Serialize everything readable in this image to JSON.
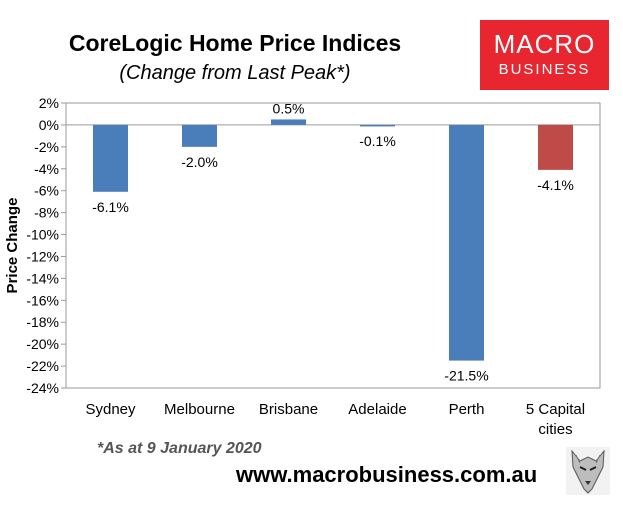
{
  "header": {
    "title": "CoreLogic Home Price Indices",
    "subtitle": "(Change from Last Peak*)"
  },
  "logo": {
    "line1": "MACRO",
    "line2": "BUSINESS"
  },
  "footer": {
    "note": "*As at 9 January 2020",
    "website": "www.macrobusiness.com.au"
  },
  "chart_data": {
    "type": "bar",
    "title": "CoreLogic Home Price Indices",
    "subtitle": "(Change from Last Peak*)",
    "ylabel": "Price Change",
    "xlabel": "",
    "categories": [
      "Sydney",
      "Melbourne",
      "Brisbane",
      "Adelaide",
      "Perth",
      "5 Capital cities"
    ],
    "category_label_lines": [
      [
        "Sydney"
      ],
      [
        "Melbourne"
      ],
      [
        "Brisbane"
      ],
      [
        "Adelaide"
      ],
      [
        "Perth"
      ],
      [
        "5 Capital",
        "cities"
      ]
    ],
    "values": [
      -6.1,
      -2.0,
      0.5,
      -0.1,
      -21.5,
      -4.1
    ],
    "data_labels": [
      "-6.1%",
      "-2.0%",
      "0.5%",
      "-0.1%",
      "-21.5%",
      "-4.1%"
    ],
    "ylim": [
      -24,
      2
    ],
    "ytick_step": 2,
    "ytick_suffix": "%",
    "colors": [
      "#4a7ebb",
      "#4a7ebb",
      "#4a7ebb",
      "#4a7ebb",
      "#4a7ebb",
      "#be4b48"
    ],
    "grid": false,
    "legend": "none"
  }
}
